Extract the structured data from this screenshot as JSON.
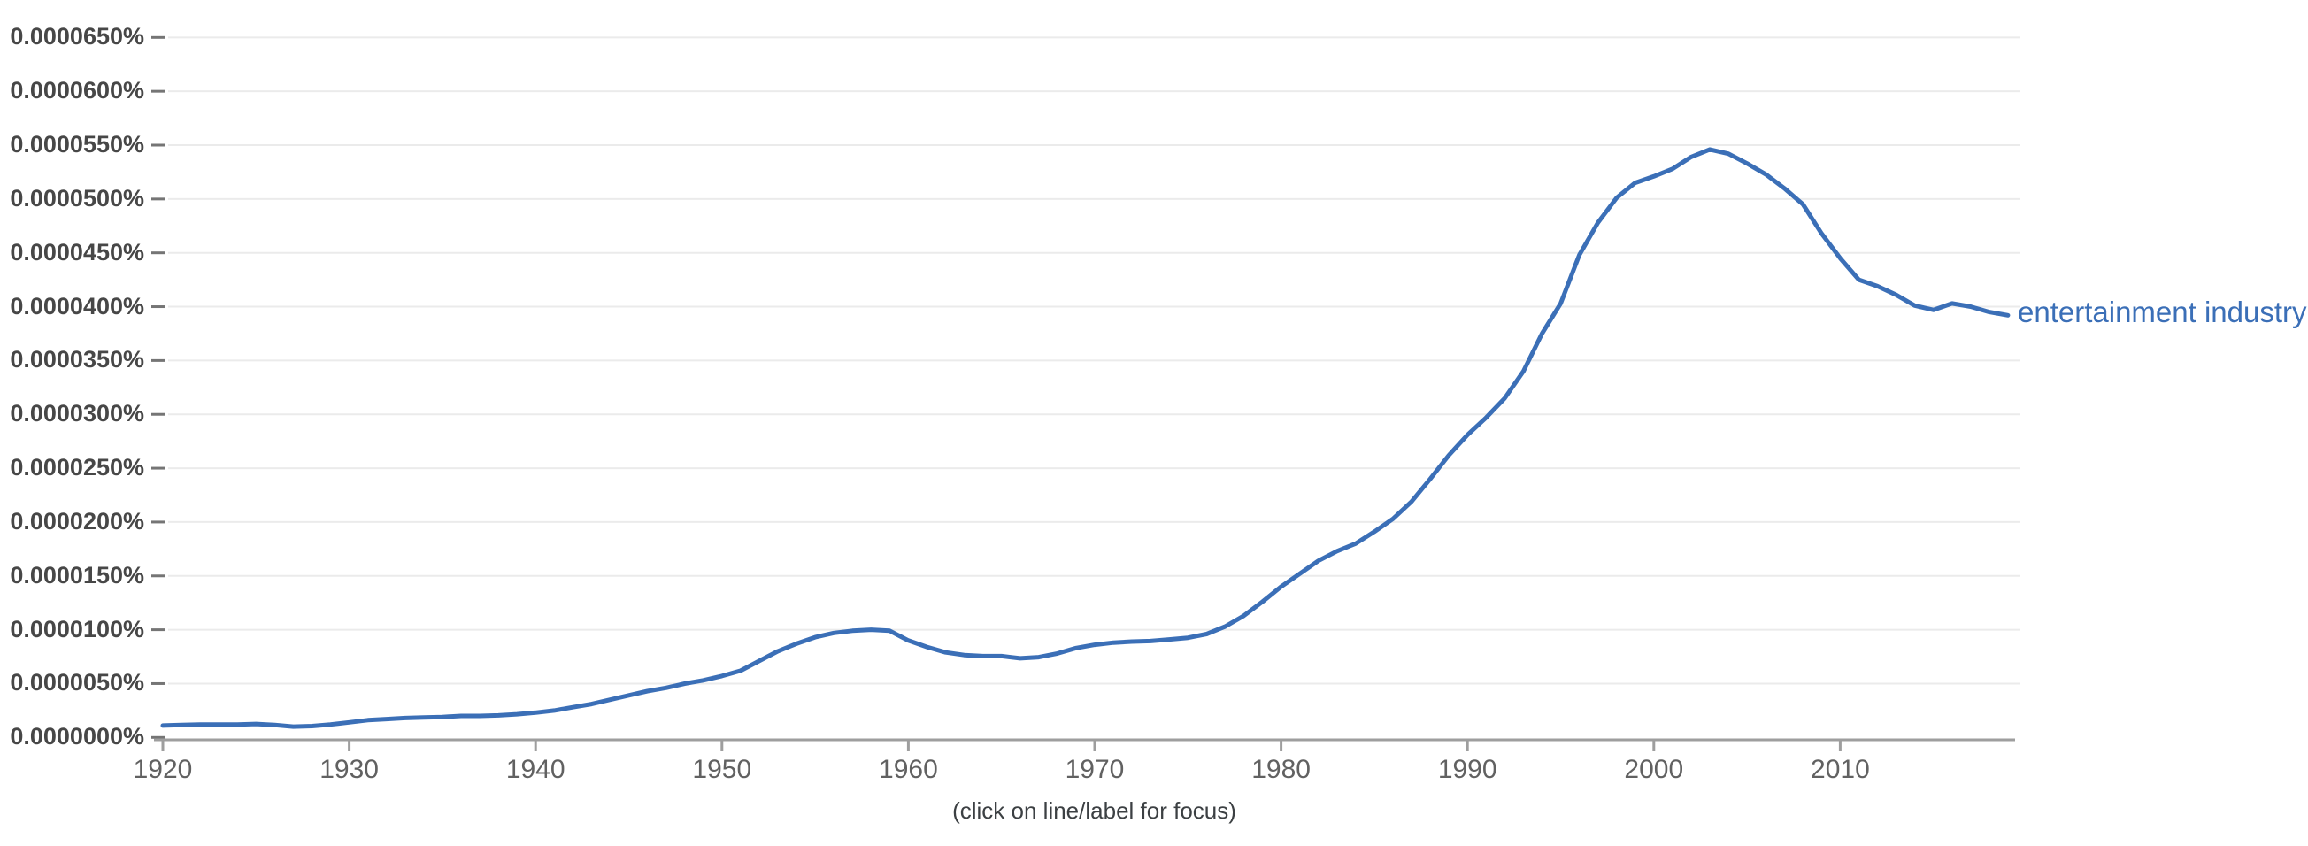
{
  "chart_data": {
    "type": "line",
    "title": "",
    "footer": "(click on line/label for focus)",
    "value_unit": "1e-7 percent (0.0000001%)",
    "x_start": 1920,
    "x_step": 1,
    "x_end": 2019,
    "xlim": [
      1919.6,
      2019.7
    ],
    "ylim_unit_1e7_percent": [
      0,
      680
    ],
    "grid": "horizontal-only",
    "legend_position": "end-of-line-right",
    "x_tick_labels": [
      "1920",
      "1930",
      "1940",
      "1950",
      "1960",
      "1970",
      "1980",
      "1990",
      "2000",
      "2010"
    ],
    "x_tick_years": [
      1920,
      1930,
      1940,
      1950,
      1960,
      1970,
      1980,
      1990,
      2000,
      2010
    ],
    "y_tick_labels": [
      "0.0000000%",
      "0.0000050%",
      "0.0000100%",
      "0.0000150%",
      "0.0000200%",
      "0.0000250%",
      "0.0000300%",
      "0.0000350%",
      "0.0000400%",
      "0.0000450%",
      "0.0000500%",
      "0.0000550%",
      "0.0000600%",
      "0.0000650%"
    ],
    "y_tick_values_1e7_percent": [
      0,
      50,
      100,
      150,
      200,
      250,
      300,
      350,
      400,
      450,
      500,
      550,
      600,
      650
    ],
    "series": [
      {
        "name": "entertainment industry",
        "color": "#3b6fb7",
        "values_1e7_percent": [
          11,
          11.5,
          12,
          12,
          12,
          12.5,
          11.5,
          10,
          10.5,
          12,
          14,
          16,
          17,
          18,
          18.5,
          19,
          20,
          20,
          20.5,
          21.5,
          23,
          25,
          28,
          31,
          35,
          39,
          43,
          46,
          50,
          53,
          57,
          62,
          71,
          80,
          87,
          93,
          97,
          99,
          100,
          99,
          90,
          84,
          79,
          76.5,
          75.5,
          75.5,
          73.5,
          74.5,
          78,
          83,
          86,
          88,
          89,
          89.5,
          91,
          92.5,
          96,
          103,
          113,
          126,
          140,
          152,
          164,
          173,
          180,
          191,
          203,
          219,
          240,
          262,
          281,
          297,
          315,
          340,
          375,
          403,
          448,
          478,
          501,
          515,
          521,
          528,
          539,
          546,
          542,
          533,
          523,
          510,
          495,
          468,
          445,
          425,
          419,
          411,
          401,
          397,
          403,
          400,
          395,
          392
        ]
      }
    ],
    "colors": {
      "line": "#3b6fb7",
      "series_label": "#3b6fb7",
      "gridline": "#ebebeb",
      "axis": "#9e9e9e",
      "x_tick_label": "#616161",
      "y_tick_label": "#474747",
      "y_dash": "#757575",
      "footer": "#3c4043",
      "background": "#ffffff"
    }
  }
}
